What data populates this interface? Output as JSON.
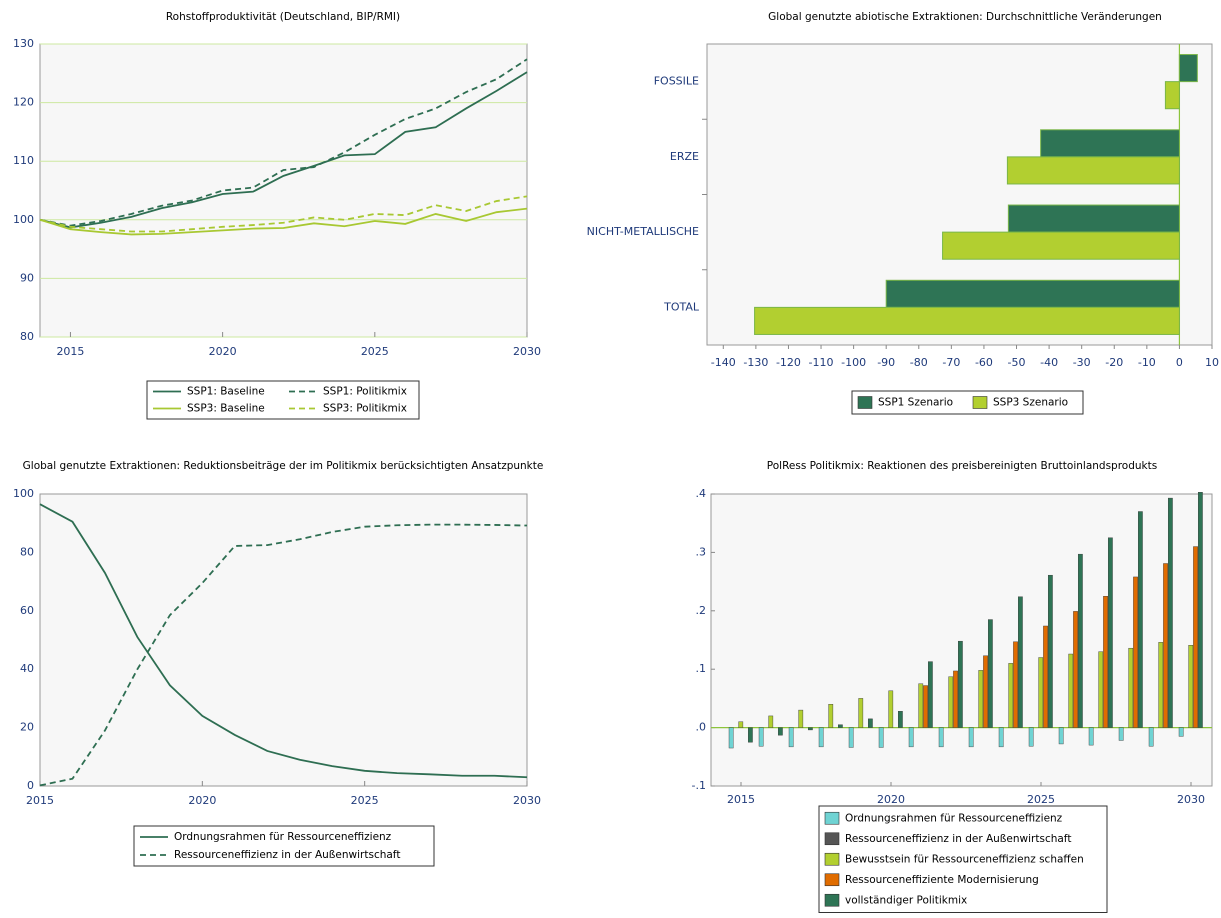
{
  "chart_data": [
    {
      "type": "line",
      "title": "Rohstoffproduktivität (Deutschland, BIP/RMI)",
      "x": [
        2014,
        2015,
        2016,
        2017,
        2018,
        2019,
        2020,
        2021,
        2022,
        2023,
        2024,
        2025,
        2026,
        2027,
        2028,
        2029,
        2030
      ],
      "xlim": [
        2014,
        2030
      ],
      "xticks": [
        2015,
        2020,
        2025,
        2030
      ],
      "ylim": [
        80,
        130
      ],
      "yticks": [
        80,
        90,
        100,
        110,
        120,
        130
      ],
      "grid": true,
      "series": [
        {
          "name": "SSP1: Baseline",
          "color": "#2e6e52",
          "line_style": "solid",
          "values": [
            100,
            98.7,
            99.5,
            100.5,
            102,
            103,
            104.4,
            104.8,
            107.5,
            109.2,
            111,
            111.2,
            115,
            115.8,
            119,
            122,
            125.2
          ]
        },
        {
          "name": "SSP1: Politikmix",
          "color": "#2e6e52",
          "line_style": "dashed",
          "values": [
            100,
            99,
            99.8,
            101,
            102.4,
            103.3,
            105,
            105.5,
            108.5,
            109,
            111.5,
            114.5,
            117.2,
            119,
            121.8,
            124,
            127.4
          ]
        },
        {
          "name": "SSP3: Baseline",
          "color": "#a8c832",
          "line_style": "solid",
          "values": [
            100,
            98.4,
            97.9,
            97.5,
            97.6,
            97.9,
            98.2,
            98.5,
            98.6,
            99.4,
            98.9,
            99.8,
            99.3,
            101,
            99.8,
            101.3,
            101.9
          ]
        },
        {
          "name": "SSP3: Politikmix",
          "color": "#a8c832",
          "line_style": "dashed",
          "values": [
            100,
            98.8,
            98.4,
            98,
            98,
            98.4,
            98.8,
            99.1,
            99.5,
            100.4,
            100,
            101,
            100.8,
            102.5,
            101.5,
            103.2,
            104
          ]
        }
      ]
    },
    {
      "type": "barh",
      "title": "Global genutzte abiotische Extraktionen: Durchschnittliche Veränderungen",
      "categories": [
        "FOSSILE",
        "ERZE",
        "NICHT-METALLISCHE",
        "TOTAL"
      ],
      "xlim": [
        -145,
        10
      ],
      "xticks": [
        -140,
        -130,
        -120,
        -110,
        -100,
        -90,
        -80,
        -70,
        -60,
        -50,
        -40,
        -30,
        -20,
        -10,
        0,
        10
      ],
      "series": [
        {
          "name": "SSP1 Szenario",
          "color": "#2e7455",
          "values": [
            5.5,
            -42.6,
            -52.5,
            -90
          ]
        },
        {
          "name": "SSP3 Szenario",
          "color": "#b2cf30",
          "values": [
            -4.3,
            -52.8,
            -72.7,
            -130.4
          ]
        }
      ]
    },
    {
      "type": "line",
      "title": "Global genutzte Extraktionen: Reduktionsbeiträge der im Politikmix berücksichtigten Ansatzpunkte",
      "x": [
        2015,
        2016,
        2017,
        2018,
        2019,
        2020,
        2021,
        2022,
        2023,
        2024,
        2025,
        2026,
        2027,
        2028,
        2029,
        2030
      ],
      "xlim": [
        2015,
        2030
      ],
      "xticks": [
        2015,
        2020,
        2025,
        2030
      ],
      "ylim": [
        0,
        100
      ],
      "yticks": [
        0,
        20,
        40,
        60,
        80,
        100
      ],
      "grid": false,
      "series": [
        {
          "name": "Ordnungsrahmen für Ressourceneffizienz",
          "color": "#2e6e52",
          "line_style": "solid",
          "values": [
            96.5,
            90.5,
            73,
            51,
            34.5,
            24,
            17.5,
            12,
            9,
            6.8,
            5.2,
            4.4,
            4,
            3.5,
            3.5,
            3
          ]
        },
        {
          "name": "Ressourceneffizienz in der Außenwirtschaft",
          "color": "#2e6e52",
          "line_style": "dashed",
          "values": [
            0.2,
            2.5,
            19,
            40,
            58.5,
            69.5,
            82.2,
            82.5,
            84.5,
            87,
            88.8,
            89.3,
            89.5,
            89.5,
            89.4,
            89.2
          ]
        }
      ]
    },
    {
      "type": "bar",
      "title": "PolRess Politikmix: Reaktionen des preisbereinigten Bruttoinlandsprodukts",
      "categories": [
        "2015",
        null,
        null,
        null,
        null,
        "2020",
        null,
        null,
        null,
        null,
        "2025",
        null,
        null,
        null,
        null,
        "2030"
      ],
      "ylim": [
        -0.1,
        0.4
      ],
      "yticks": [
        {
          "value": -0.1,
          "label": "-.1"
        },
        {
          "value": 0,
          "label": ".0"
        },
        {
          "value": 0.1,
          "label": ".1"
        },
        {
          "value": 0.2,
          "label": ".2"
        },
        {
          "value": 0.3,
          "label": ".3"
        },
        {
          "value": 0.4,
          "label": ".4"
        }
      ],
      "series": [
        {
          "name": "Ordnungsrahmen für Ressourceneffizienz",
          "color": "#6fd3d3",
          "values": [
            -0.035,
            -0.032,
            -0.033,
            -0.033,
            -0.034,
            -0.034,
            -0.033,
            -0.033,
            -0.033,
            -0.033,
            -0.032,
            -0.028,
            -0.03,
            -0.022,
            -0.032,
            -0.015
          ]
        },
        {
          "name": "Ressourceneffizienz in der Außenwirtschaft",
          "color": "#555555",
          "values": [
            0,
            0,
            0,
            0,
            0,
            0,
            0,
            0,
            0,
            0,
            0,
            0,
            0,
            0,
            0,
            0
          ]
        },
        {
          "name": "Bewusstsein für Ressourceneffizienz schaffen",
          "color": "#b2cf30",
          "values": [
            0.01,
            0.02,
            0.03,
            0.04,
            0.05,
            0.063,
            0.075,
            0.087,
            0.098,
            0.11,
            0.12,
            0.126,
            0.13,
            0.136,
            0.146,
            0.141
          ]
        },
        {
          "name": "Ressourceneffiziente Modernisierung",
          "color": "#e06c00",
          "values": [
            0,
            0,
            0,
            0,
            0,
            0,
            0.072,
            0.097,
            0.123,
            0.147,
            0.174,
            0.199,
            0.225,
            0.258,
            0.281,
            0.31
          ]
        },
        {
          "name": "vollständiger Politikmix",
          "color": "#2e7455",
          "values": [
            -0.025,
            -0.013,
            -0.004,
            0.005,
            0.015,
            0.028,
            0.113,
            0.148,
            0.185,
            0.224,
            0.261,
            0.297,
            0.325,
            0.37,
            0.393,
            0.403
          ]
        }
      ]
    }
  ]
}
